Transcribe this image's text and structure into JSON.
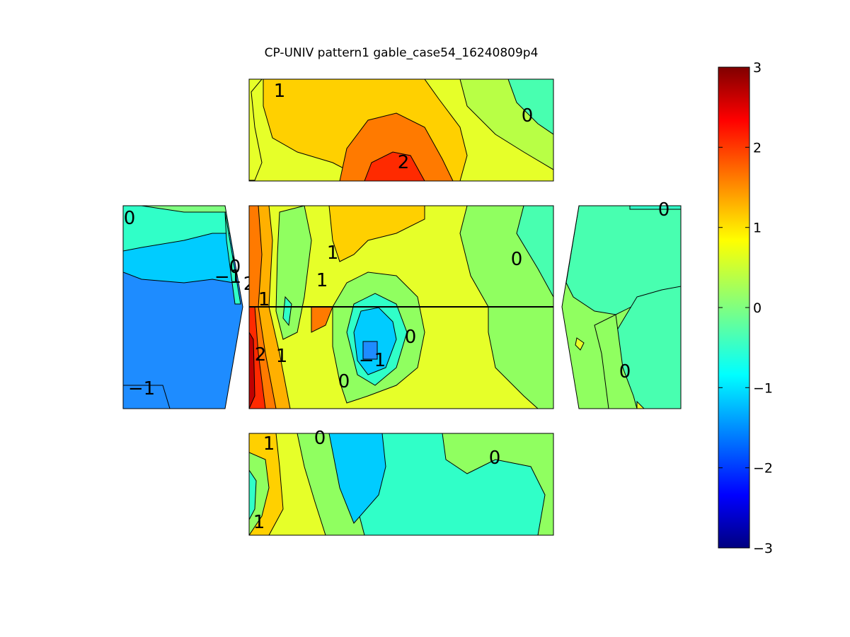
{
  "chart_data": {
    "type": "heatmap",
    "title": "CP-UNIV pattern1 gable_case54_16240809p4",
    "colormap": "jet",
    "colorbar": {
      "ticks": [
        "3",
        "2",
        "1",
        "0",
        "−1",
        "−2",
        "−3"
      ],
      "range": [
        -3,
        3
      ]
    },
    "panels": [
      {
        "id": "top",
        "contour_labels": [
          "1",
          "0",
          "2"
        ]
      },
      {
        "id": "left",
        "contour_labels": [
          "0",
          "−1",
          "0",
          "2",
          "−1"
        ]
      },
      {
        "id": "center",
        "contour_labels": [
          "1",
          "0",
          "1",
          "1",
          "2",
          "1",
          "0",
          "−1",
          "0"
        ]
      },
      {
        "id": "right",
        "contour_labels": [
          "0",
          "0"
        ]
      },
      {
        "id": "bottom",
        "contour_labels": [
          "1",
          "0",
          "0",
          "1"
        ]
      }
    ]
  }
}
